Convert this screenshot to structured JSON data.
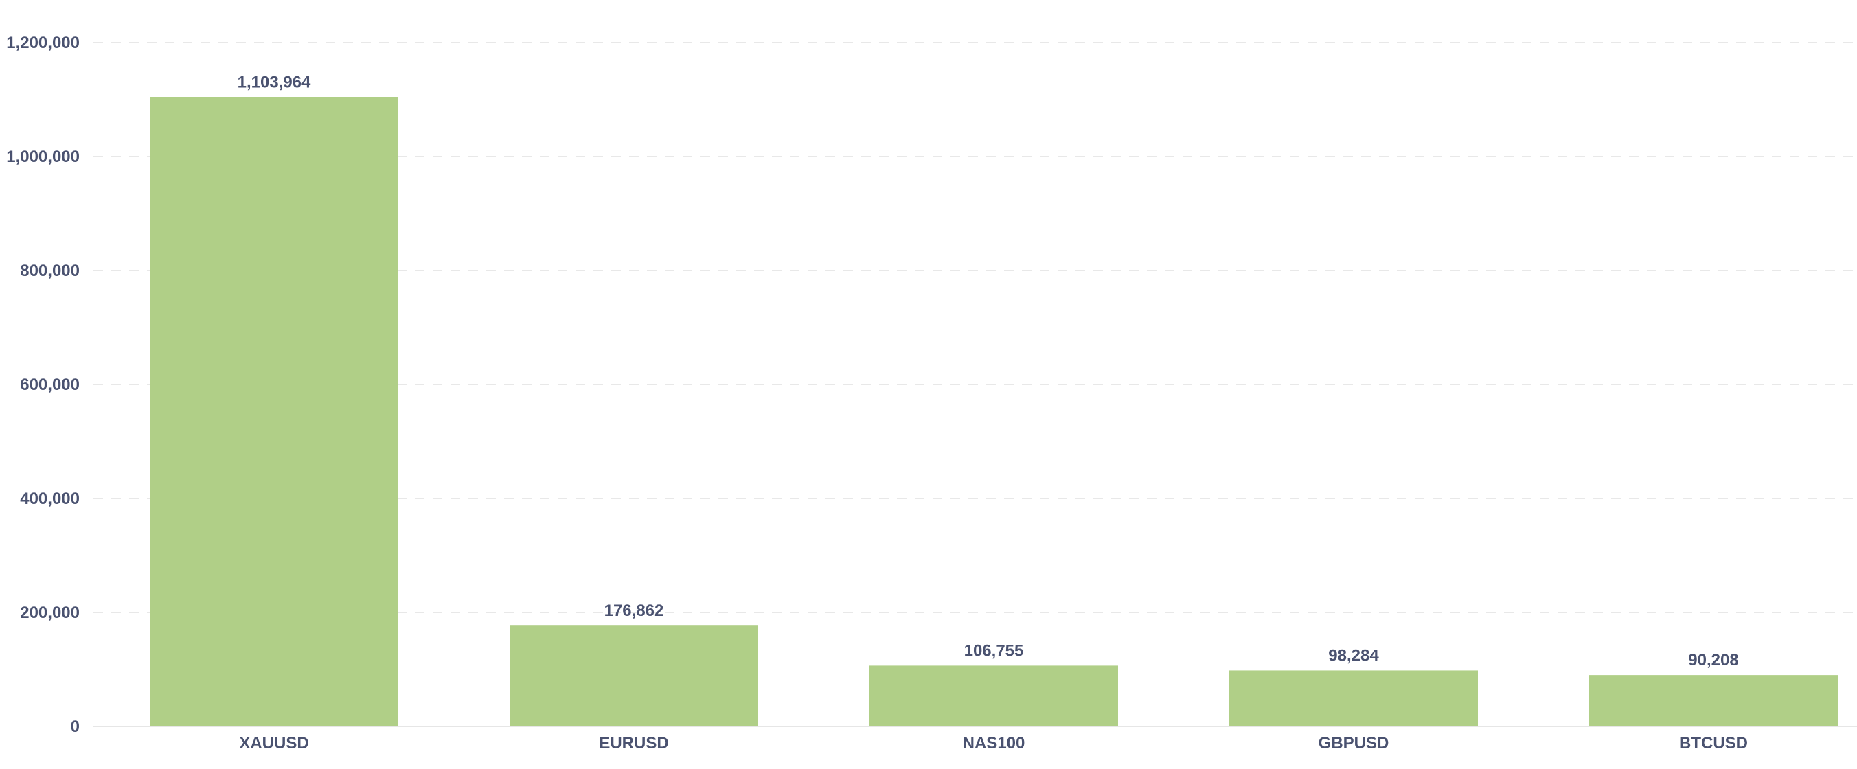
{
  "chart_data": {
    "type": "bar",
    "categories": [
      "XAUUSD",
      "EURUSD",
      "NAS100",
      "GBPUSD",
      "BTCUSD"
    ],
    "values": [
      1103964,
      176862,
      106755,
      98284,
      90208
    ],
    "data_labels": [
      "1,103,964",
      "176,862",
      "106,755",
      "98,284",
      "90,208"
    ],
    "title": "",
    "xlabel": "",
    "ylabel": "",
    "ylim": [
      0,
      1200000
    ],
    "yticks": [
      0,
      200000,
      400000,
      600000,
      800000,
      1000000,
      1200000
    ],
    "ytick_labels": [
      "0",
      "200,000",
      "400,000",
      "600,000",
      "800,000",
      "1,000,000",
      "1,200,000"
    ],
    "grid": true,
    "grid_style": "dashed",
    "legend": "none",
    "bar_color": "#b0cf87",
    "text_color": "#4a5270",
    "grid_color": "#e8e8e8"
  }
}
